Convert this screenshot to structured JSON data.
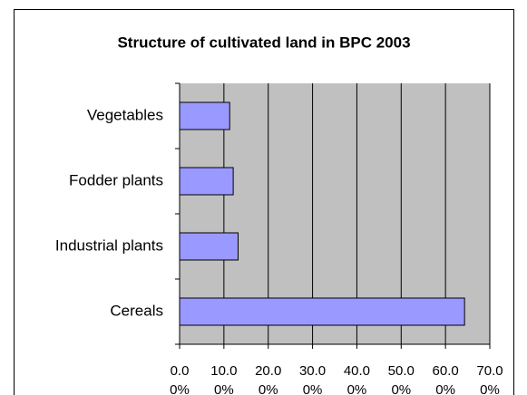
{
  "chart_data": {
    "type": "bar",
    "orientation": "horizontal",
    "title": "Structure of cultivated land in BPC 2003",
    "categories": [
      "Vegetables",
      "Fodder plants",
      "Industrial plants",
      "Cereals"
    ],
    "values": [
      11.3,
      12.1,
      13.2,
      64.3
    ],
    "color": "#9999ff",
    "xlim": [
      0,
      70
    ],
    "xticks": [
      {
        "value": 0,
        "label": "0.00%"
      },
      {
        "value": 10,
        "label": "10.00%"
      },
      {
        "value": 20,
        "label": "20.00%"
      },
      {
        "value": 30,
        "label": "30.00%"
      },
      {
        "value": 40,
        "label": "40.00%"
      },
      {
        "value": 50,
        "label": "50.00%"
      },
      {
        "value": 60,
        "label": "60.00%"
      },
      {
        "value": 70,
        "label": "70.00%"
      }
    ],
    "grid": true
  }
}
